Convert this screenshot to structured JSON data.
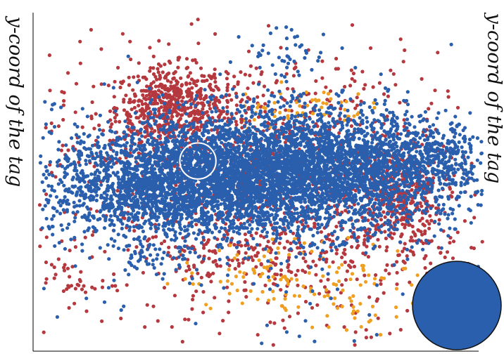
{
  "chart_data": {
    "type": "scatter",
    "title": "",
    "xlabel": "",
    "ylabel": "y-coord of the tag",
    "ylabel_repeated": "y-coord of the tag",
    "grid": false,
    "legend": "none",
    "xlim": [
      0,
      100
    ],
    "ylim": [
      0,
      100
    ],
    "series": [
      {
        "color": "#b5383f",
        "clusters": [
          {
            "cx": 30,
            "cy": 72,
            "sx": 6,
            "sy": 6,
            "n": 500
          },
          {
            "cx": 80,
            "cy": 45,
            "sx": 5,
            "sy": 7,
            "n": 380
          },
          {
            "cx": 45,
            "cy": 60,
            "sx": 22,
            "sy": 14,
            "n": 900
          },
          {
            "cx": 55,
            "cy": 30,
            "sx": 20,
            "sy": 7,
            "n": 320
          },
          {
            "cx": 7,
            "cy": 20,
            "sx": 3,
            "sy": 3,
            "n": 30
          },
          {
            "cx": 50,
            "cy": 30,
            "sx": 35,
            "sy": 22,
            "n": 260
          }
        ]
      },
      {
        "color": "#f0a020",
        "clusters": [
          {
            "cx": 60,
            "cy": 22,
            "sx": 14,
            "sy": 5,
            "n": 120
          },
          {
            "cx": 58,
            "cy": 72,
            "sx": 8,
            "sy": 3,
            "n": 60
          },
          {
            "cx": 70,
            "cy": 10,
            "sx": 4,
            "sy": 3,
            "n": 20
          }
        ]
      },
      {
        "color": "#2a5fad",
        "clusters": [
          {
            "cx": 50,
            "cy": 52,
            "sx": 22,
            "sy": 9,
            "n": 3600
          },
          {
            "cx": 30,
            "cy": 48,
            "sx": 13,
            "sy": 7,
            "n": 1200
          },
          {
            "cx": 65,
            "cy": 55,
            "sx": 16,
            "sy": 8,
            "n": 1400
          },
          {
            "cx": 91,
            "cy": 58,
            "sx": 4,
            "sy": 4,
            "n": 110
          },
          {
            "cx": 56,
            "cy": 88,
            "sx": 5,
            "sy": 4,
            "n": 45
          },
          {
            "cx": 26,
            "cy": 27,
            "sx": 4,
            "sy": 2,
            "n": 40
          },
          {
            "cx": 50,
            "cy": 35,
            "sx": 35,
            "sy": 22,
            "n": 220
          }
        ]
      }
    ],
    "highlight_circle": {
      "x": 36,
      "y": 56,
      "r_x": 4,
      "stroke": "#ffffff"
    },
    "marker_disc": {
      "color": "#2a5fad",
      "outline": "#111111"
    }
  }
}
